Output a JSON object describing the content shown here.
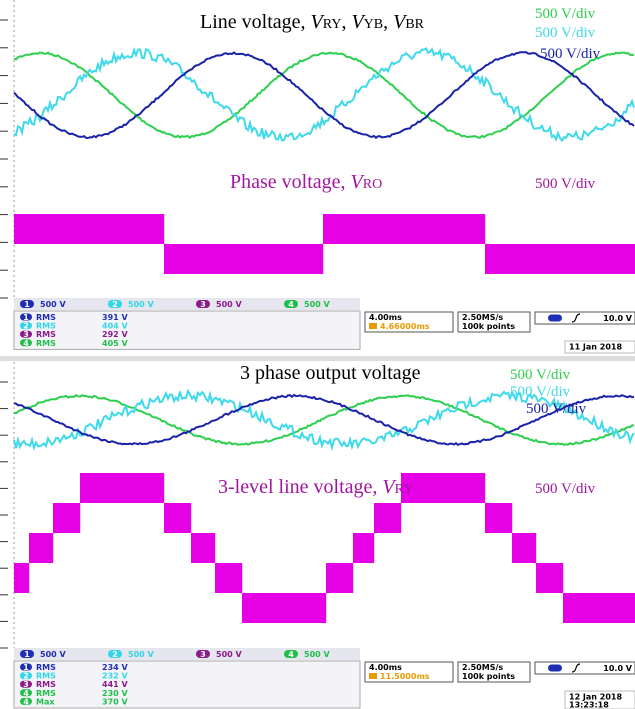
{
  "panels": [
    {
      "title": [
        "Line voltage, ",
        "V",
        "RY",
        ", ",
        "V",
        "YB",
        ", ",
        "V",
        "BR"
      ],
      "scales": [
        "500 V/div",
        "500 V/div",
        "500 V/div"
      ],
      "subtitle": [
        "Phase voltage, ",
        "V",
        "RO"
      ],
      "sub_scale": "500 V/div",
      "channels": [
        {
          "number": "1",
          "scale": "500 V"
        },
        {
          "number": "2",
          "scale": "500 V"
        },
        {
          "number": "3",
          "scale": "500 V"
        },
        {
          "number": "4",
          "scale": "500 V"
        }
      ],
      "measurements": [
        {
          "channel": "1",
          "label": "RMS",
          "value": "391 V"
        },
        {
          "channel": "2",
          "label": "RMS",
          "value": "404 V"
        },
        {
          "channel": "3",
          "label": "RMS",
          "value": "292 V"
        },
        {
          "channel": "4",
          "label": "RMS",
          "value": "405 V"
        }
      ],
      "timebase": "4.00ms",
      "position": "4.66000ms",
      "sample_rate": "2.50MS/s",
      "points": "100k points",
      "trigger_level": "10.0 V",
      "date": "11 Jan 2018"
    },
    {
      "title": [
        "3 phase output voltage"
      ],
      "scales": [
        "500 V/div",
        "500 V/div",
        "500 V/div"
      ],
      "subtitle": [
        "3-level line voltage, ",
        "V",
        "RY"
      ],
      "sub_scale": "500 V/div",
      "channels": [
        {
          "number": "1",
          "scale": "500 V"
        },
        {
          "number": "2",
          "scale": "500 V"
        },
        {
          "number": "3",
          "scale": "500 V"
        },
        {
          "number": "4",
          "scale": "500 V"
        }
      ],
      "measurements": [
        {
          "channel": "1",
          "label": "RMS",
          "value": "234 V"
        },
        {
          "channel": "2",
          "label": "RMS",
          "value": "232 V"
        },
        {
          "channel": "3",
          "label": "RMS",
          "value": "441 V"
        },
        {
          "channel": "4",
          "label": "RMS",
          "value": "230 V"
        },
        {
          "channel": "4",
          "label": "Max",
          "value": "370 V"
        }
      ],
      "timebase": "4.00ms",
      "position": "11.5000ms",
      "sample_rate": "2.50MS/s",
      "points": "100k points",
      "trigger_level": "10.0 V",
      "date": "12 Jan 2018",
      "time": "13:23:18"
    }
  ]
}
